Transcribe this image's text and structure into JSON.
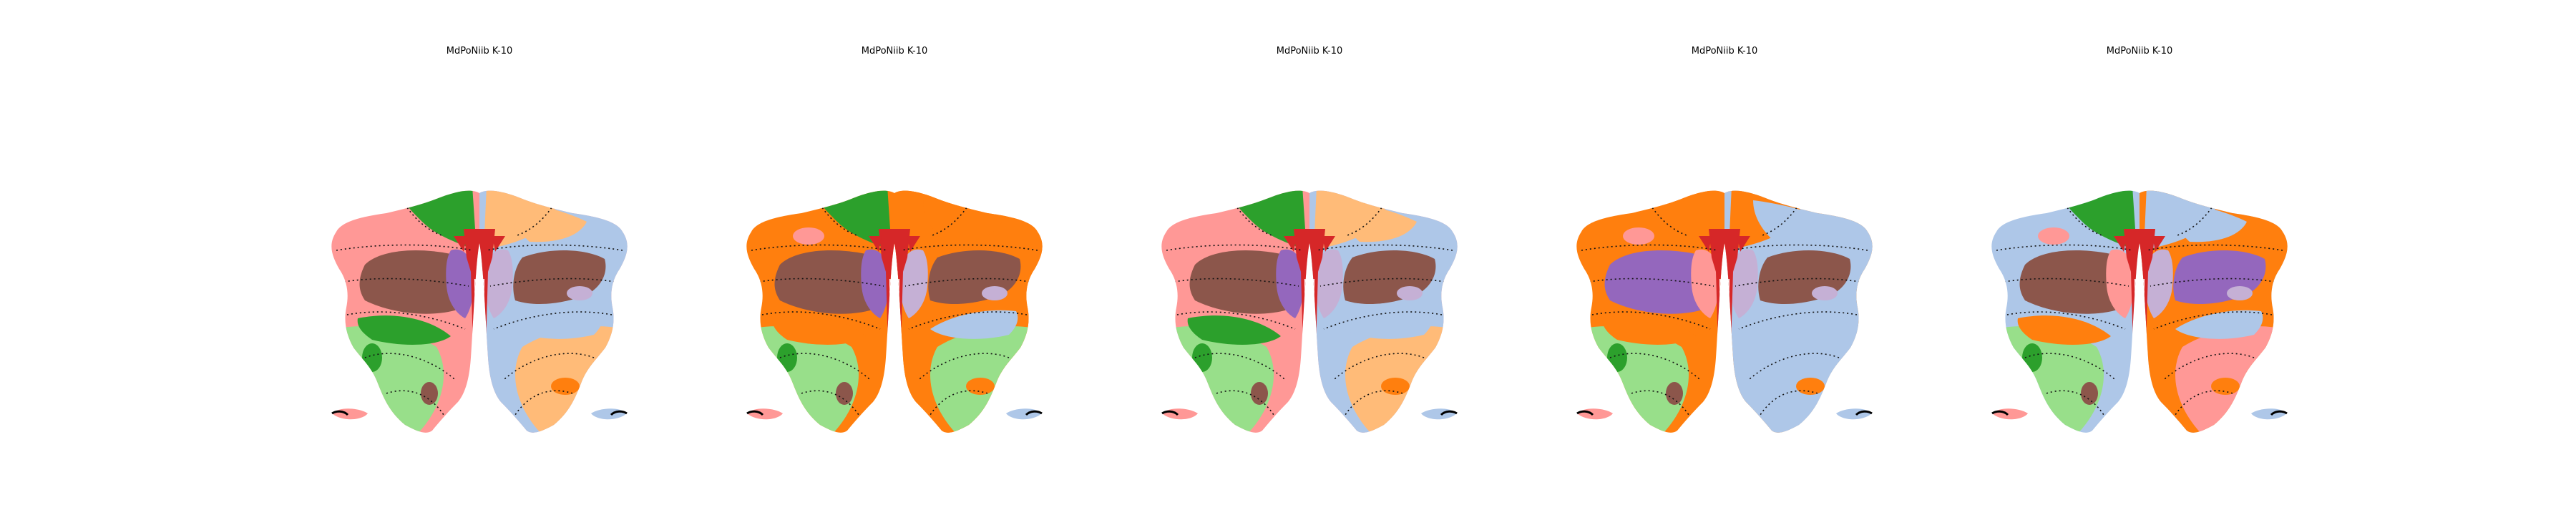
{
  "figure": {
    "panels": [
      {
        "title": "MdPoNiib K-10",
        "variant": 0
      },
      {
        "title": "MdPoNiib K-10",
        "variant": 1
      },
      {
        "title": "MdPoNiib K-10",
        "variant": 2
      },
      {
        "title": "MdPoNiib K-10",
        "variant": 3
      },
      {
        "title": "MdPoNiib K-10",
        "variant": 4
      }
    ]
  },
  "palette": {
    "orange": "#ff7f0e",
    "light_orange": "#ffbb78",
    "green": "#2ca02c",
    "light_green": "#98df8a",
    "red": "#d62728",
    "pink": "#ff9896",
    "purple": "#9467bd",
    "lavender": "#c5b0d5",
    "brown": "#8c564b",
    "light_blue": "#aec7e8",
    "contour": "#111111"
  },
  "variants": [
    {
      "leftTop": "pink",
      "leftMid": "brown",
      "leftInner": "purple",
      "leftBottom": "light_green",
      "leftLow": "green",
      "rightTop": "light_orange",
      "rightMid": "brown",
      "rightInner": "lavender",
      "rightOuter": "light_blue",
      "rightBottom": "light_orange",
      "topLeft": "green",
      "topRight": "light_orange"
    },
    {
      "leftTop": "orange",
      "leftMid": "brown",
      "leftInner": "purple",
      "leftBottom": "light_green",
      "leftLow": "orange",
      "rightTop": "orange",
      "rightMid": "brown",
      "rightInner": "lavender",
      "rightOuter": "orange",
      "rightBottom": "light_green",
      "topLeft": "green",
      "topRight": "orange"
    },
    {
      "leftTop": "pink",
      "leftMid": "brown",
      "leftInner": "purple",
      "leftBottom": "light_green",
      "leftLow": "green",
      "rightTop": "light_orange",
      "rightMid": "brown",
      "rightInner": "lavender",
      "rightOuter": "light_blue",
      "rightBottom": "light_orange",
      "topLeft": "green",
      "topRight": "light_orange"
    },
    {
      "leftTop": "orange",
      "leftMid": "purple",
      "leftInner": "pink",
      "leftBottom": "light_green",
      "leftLow": "orange",
      "rightTop": "light_blue",
      "rightMid": "brown",
      "rightInner": "lavender",
      "rightOuter": "light_blue",
      "rightBottom": "light_blue",
      "topLeft": "orange",
      "topRight": "orange"
    },
    {
      "leftTop": "light_blue",
      "leftMid": "brown",
      "leftInner": "pink",
      "leftBottom": "light_green",
      "leftLow": "orange",
      "rightTop": "light_blue",
      "rightMid": "purple",
      "rightInner": "lavender",
      "rightOuter": "orange",
      "rightBottom": "pink",
      "topLeft": "green",
      "topRight": "light_blue"
    }
  ]
}
